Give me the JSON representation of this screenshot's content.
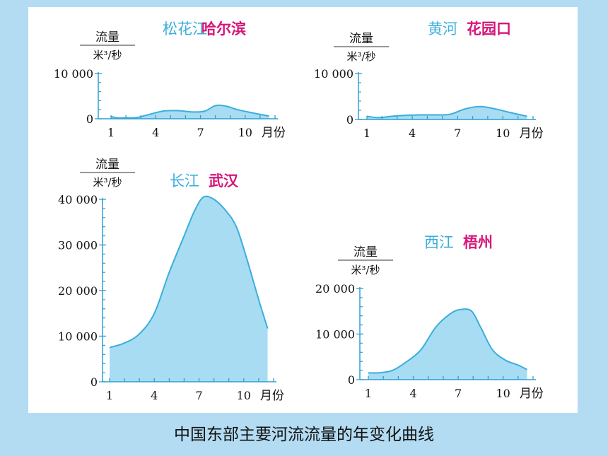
{
  "caption": "中国东部主要河流流量的年变化曲线",
  "colors": {
    "curve": "#3aaedc",
    "fill": "#a7dcf3",
    "river": "#3aaedc",
    "station": "#d5177a",
    "axis": "#2f9fd0",
    "text": "#111111",
    "background": "#b3dcf2"
  },
  "chart_data": [
    {
      "type": "area",
      "river": "松花江",
      "station": "哈尔滨",
      "ylabel": "流量",
      "yunit": "米³/秒",
      "xlabel": "月份",
      "xtick_labels": [
        "1",
        "4",
        "7",
        "10"
      ],
      "ytick_labels": [
        "0",
        "10 000"
      ],
      "ylim": [
        0,
        10000
      ],
      "xlim": [
        1,
        12
      ],
      "series": [
        {
          "x": [
            1,
            1.4,
            2,
            2.7,
            3.5,
            4.5,
            5.5,
            6.5,
            7.3,
            8,
            8.7,
            9.5,
            10.5,
            11.6
          ],
          "y": [
            500,
            200,
            200,
            250,
            900,
            1700,
            1800,
            1500,
            1700,
            2900,
            2800,
            2000,
            1300,
            600
          ]
        }
      ]
    },
    {
      "type": "area",
      "river": "黄河",
      "station": "花园口",
      "ylabel": "流量",
      "yunit": "米³/秒",
      "xlabel": "月份",
      "xtick_labels": [
        "1",
        "4",
        "7",
        "10"
      ],
      "ytick_labels": [
        "0",
        "10 000"
      ],
      "ylim": [
        0,
        10000
      ],
      "xlim": [
        1,
        12
      ],
      "series": [
        {
          "x": [
            1,
            1.8,
            3,
            4.5,
            6,
            6.6,
            7.5,
            8.5,
            9.5,
            10.5,
            11.6
          ],
          "y": [
            700,
            400,
            800,
            1000,
            1000,
            1200,
            2300,
            2800,
            2300,
            1500,
            700
          ]
        }
      ]
    },
    {
      "type": "area",
      "river": "长江",
      "station": "武汉",
      "ylabel": "流量",
      "yunit": "米³/秒",
      "xlabel": "月份",
      "xtick_labels": [
        "1",
        "4",
        "7",
        "10"
      ],
      "ytick_labels": [
        "0",
        "10 000",
        "20 000",
        "30 000",
        "40 000"
      ],
      "ylim": [
        0,
        40000
      ],
      "xlim": [
        1,
        12
      ],
      "series": [
        {
          "x": [
            1,
            2,
            3,
            4,
            5,
            6,
            6.7,
            7.3,
            8,
            8.8,
            9.5,
            10.2,
            11,
            11.6
          ],
          "y": [
            7500,
            8500,
            10500,
            15000,
            24000,
            32000,
            37500,
            40500,
            40000,
            37500,
            34000,
            27000,
            18000,
            11700
          ]
        }
      ]
    },
    {
      "type": "area",
      "river": "西江",
      "station": "梧州",
      "ylabel": "流量",
      "yunit": "米³/秒",
      "xlabel": "月份",
      "xtick_labels": [
        "1",
        "4",
        "7",
        "10"
      ],
      "ytick_labels": [
        "0",
        "10 000",
        "20 000"
      ],
      "ylim": [
        0,
        20000
      ],
      "xlim": [
        1,
        12
      ],
      "series": [
        {
          "x": [
            1,
            1.7,
            2.6,
            3.5,
            4.5,
            5.5,
            6.5,
            7.2,
            7.9,
            8.5,
            9.3,
            10.2,
            11,
            11.6
          ],
          "y": [
            1500,
            1500,
            2000,
            3800,
            6500,
            11500,
            14500,
            15400,
            15000,
            11500,
            6500,
            4200,
            3200,
            2200
          ]
        }
      ]
    }
  ]
}
